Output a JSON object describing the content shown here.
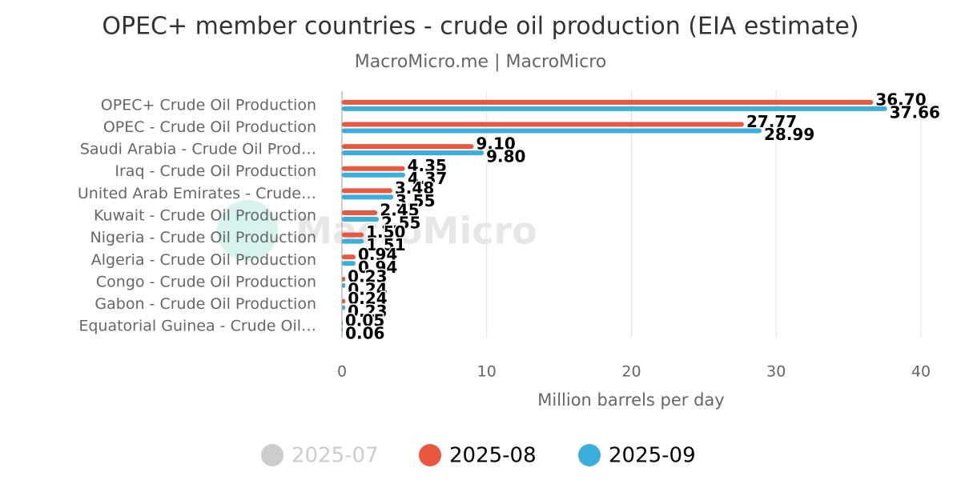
{
  "chart_data": {
    "type": "hbar",
    "title": "OPEC+ member countries - crude oil production (EIA estimate)",
    "subtitle": "MacroMicro.me | MacroMicro",
    "watermark": "MacroMicro",
    "x_label": "Million barrels per day",
    "categories": [
      "OPEC+ Crude Oil Production",
      "OPEC - Crude Oil Production",
      "Saudi Arabia - Crude Oil Prod…",
      "Iraq - Crude Oil Production",
      "United Arab Emirates - Crude…",
      "Kuwait - Crude Oil Production",
      "Nigeria - Crude Oil Production",
      "Algeria - Crude Oil Production",
      "Congo - Crude Oil Production",
      "Gabon - Crude Oil Production",
      "Equatorial Guinea - Crude Oil…"
    ],
    "series": [
      {
        "name": "2025-07",
        "color": "#cccccc",
        "visible": false,
        "values": [
          null,
          null,
          null,
          null,
          null,
          null,
          null,
          null,
          null,
          null,
          null
        ]
      },
      {
        "name": "2025-08",
        "color": "#e9573f",
        "visible": true,
        "values": [
          36.7,
          27.77,
          9.1,
          4.35,
          3.48,
          2.45,
          1.5,
          0.94,
          0.23,
          0.24,
          0.05
        ],
        "value_labels": [
          "36.70",
          "27.77",
          "9.10",
          "4.35",
          "3.48",
          "2.45",
          "1.50",
          "0.94",
          "0.23",
          "0.24",
          "0.05"
        ]
      },
      {
        "name": "2025-09",
        "color": "#3bafda",
        "visible": true,
        "values": [
          37.66,
          28.99,
          9.8,
          4.37,
          3.55,
          2.55,
          1.51,
          0.94,
          0.24,
          0.23,
          0.06
        ],
        "value_labels": [
          "37.66",
          "28.99",
          "9.80",
          "4.37",
          "3.55",
          "2.55",
          "1.51",
          "0.94",
          "0.24",
          "0.23",
          "0.06"
        ]
      }
    ],
    "xlim": [
      0,
      40
    ],
    "xticks": [
      0,
      10,
      20,
      30,
      40
    ],
    "grid": true,
    "legend": "bottom"
  }
}
